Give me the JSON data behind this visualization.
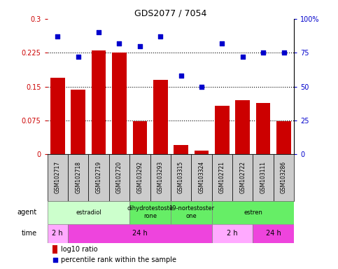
{
  "title": "GDS2077 / 7054",
  "samples": [
    "GSM102717",
    "GSM102718",
    "GSM102719",
    "GSM102720",
    "GSM103292",
    "GSM103293",
    "GSM103315",
    "GSM103324",
    "GSM102721",
    "GSM102722",
    "GSM103111",
    "GSM103286"
  ],
  "log10_ratio": [
    0.17,
    0.143,
    0.23,
    0.225,
    0.073,
    0.165,
    0.02,
    0.008,
    0.108,
    0.12,
    0.113,
    0.073
  ],
  "percentile_rank": [
    87,
    72,
    90,
    82,
    80,
    87,
    58,
    50,
    82,
    72,
    75,
    75
  ],
  "bar_color": "#cc0000",
  "dot_color": "#0000cc",
  "ylim_left": [
    0,
    0.3
  ],
  "ylim_right": [
    0,
    100
  ],
  "yticks_left": [
    0,
    0.075,
    0.15,
    0.225,
    0.3
  ],
  "ytick_labels_left": [
    "0",
    "0.075",
    "0.15",
    "0.225",
    "0.3"
  ],
  "yticks_right": [
    0,
    25,
    50,
    75,
    100
  ],
  "ytick_labels_right": [
    "0",
    "25",
    "50",
    "75",
    "100%"
  ],
  "agent_groups": [
    {
      "label": "estradiol",
      "start": 0,
      "end": 4,
      "color": "#ccffcc"
    },
    {
      "label": "dihydrotestoste\nrone",
      "start": 4,
      "end": 6,
      "color": "#66ee66"
    },
    {
      "label": "19-nortestoster\none",
      "start": 6,
      "end": 8,
      "color": "#66ee66"
    },
    {
      "label": "estren",
      "start": 8,
      "end": 12,
      "color": "#66ee66"
    }
  ],
  "time_groups": [
    {
      "label": "2 h",
      "start": 0,
      "end": 1,
      "color": "#ffaaff"
    },
    {
      "label": "24 h",
      "start": 1,
      "end": 8,
      "color": "#ee44dd"
    },
    {
      "label": "2 h",
      "start": 8,
      "end": 10,
      "color": "#ffaaff"
    },
    {
      "label": "24 h",
      "start": 10,
      "end": 12,
      "color": "#ee44dd"
    }
  ],
  "sample_box_color": "#cccccc",
  "legend_bar_label": "log10 ratio",
  "legend_dot_label": "percentile rank within the sample",
  "agent_label": "agent",
  "time_label": "time",
  "background_color": "#ffffff"
}
